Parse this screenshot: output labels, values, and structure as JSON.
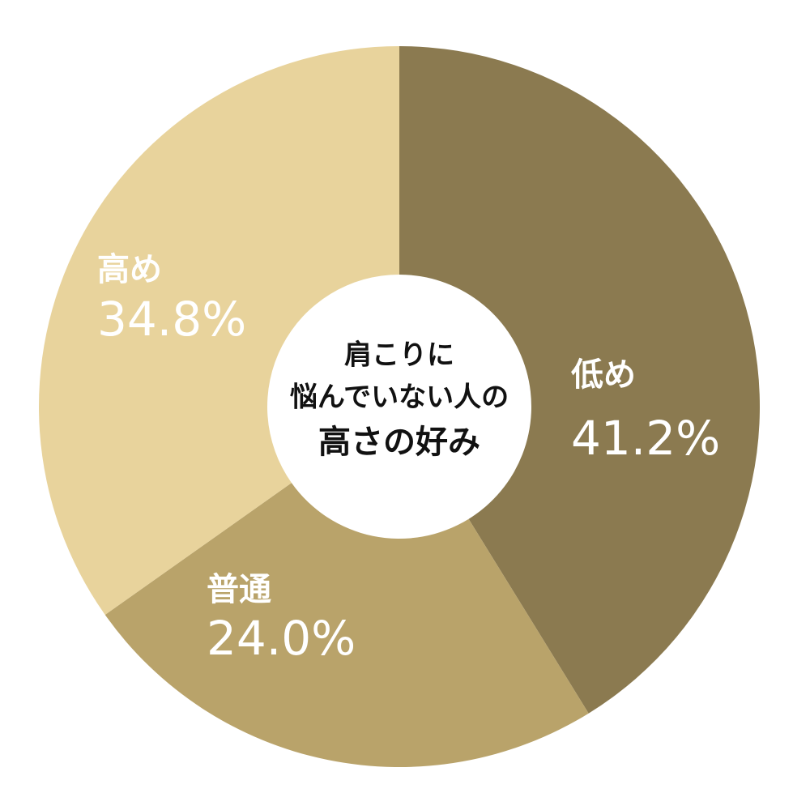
{
  "chart_data": {
    "type": "pie",
    "center_text": [
      "肩こりに",
      "悩んでいない人の",
      "高さの好み"
    ],
    "categories": [
      "低め",
      "普通",
      "高め"
    ],
    "values": [
      41.2,
      24.0,
      34.8
    ],
    "value_labels": [
      "41.2%",
      "24.0%",
      "34.8%"
    ],
    "colors": [
      "#8b7a50",
      "#b9a36a",
      "#e8d39c"
    ],
    "donut": true
  }
}
